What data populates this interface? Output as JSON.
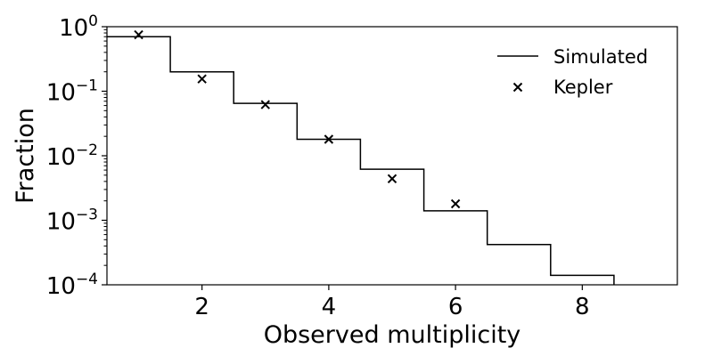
{
  "chart_data": {
    "type": "line",
    "title": "",
    "xlabel": "Observed multiplicity",
    "ylabel": "Fraction",
    "xlim": [
      0.5,
      9.5
    ],
    "ylim": [
      0.0001,
      1
    ],
    "yscale": "log",
    "grid": false,
    "legend_position": "top-right",
    "x_ticks": [
      {
        "value": 2,
        "label": "2"
      },
      {
        "value": 4,
        "label": "4"
      },
      {
        "value": 6,
        "label": "6"
      },
      {
        "value": 8,
        "label": "8"
      }
    ],
    "y_ticks": [
      {
        "value": 1,
        "base": "10",
        "exp": "0"
      },
      {
        "value": 0.1,
        "base": "10",
        "exp": "−1"
      },
      {
        "value": 0.01,
        "base": "10",
        "exp": "−2"
      },
      {
        "value": 0.001,
        "base": "10",
        "exp": "−3"
      },
      {
        "value": 0.0001,
        "base": "10",
        "exp": "−4"
      }
    ],
    "series": [
      {
        "name": "Simulated",
        "type": "step",
        "color": "#000000",
        "x": [
          1,
          2,
          3,
          4,
          5,
          6,
          7,
          8
        ],
        "values": [
          0.7,
          0.2,
          0.065,
          0.018,
          0.0062,
          0.0014,
          0.00042,
          0.00014
        ]
      },
      {
        "name": "Kepler",
        "type": "scatter",
        "marker": "x",
        "color": "#000000",
        "x": [
          1,
          2,
          3,
          4,
          5,
          6
        ],
        "values": [
          0.75,
          0.155,
          0.062,
          0.018,
          0.0044,
          0.0018
        ]
      }
    ]
  }
}
